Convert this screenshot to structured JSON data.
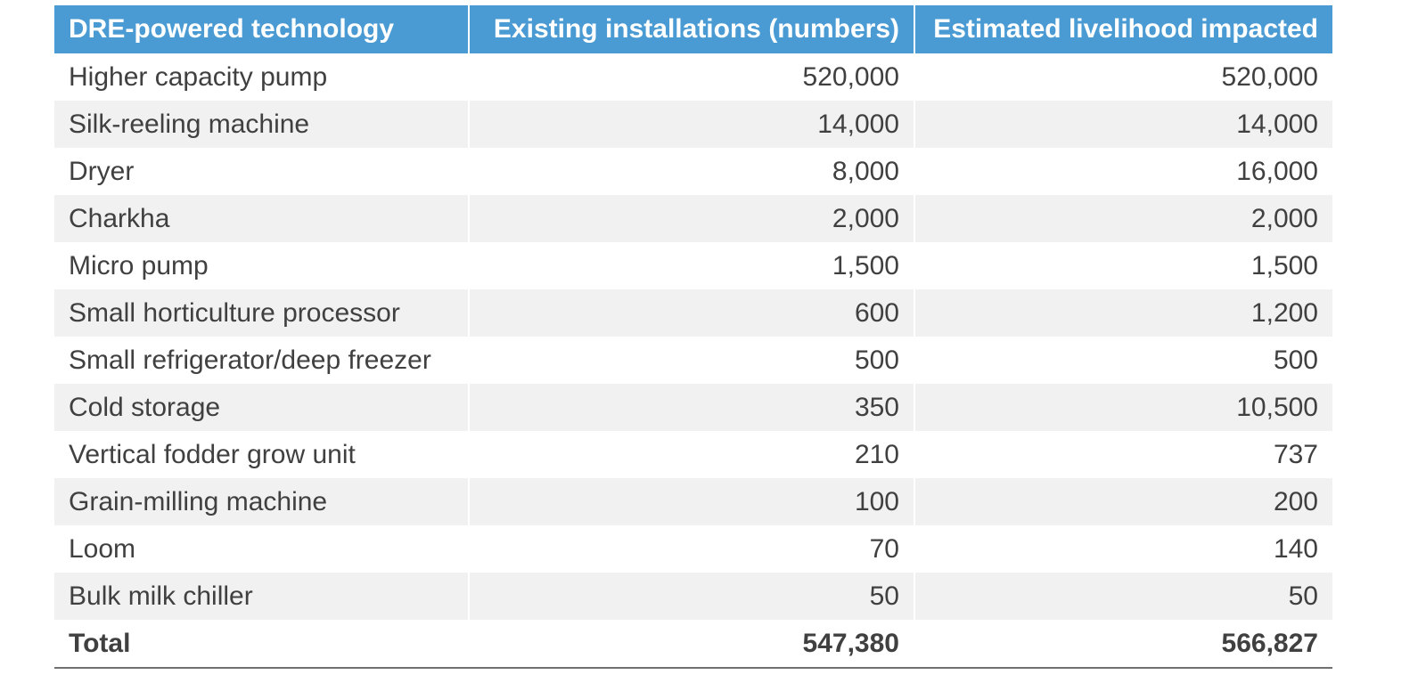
{
  "table": {
    "headers": [
      "DRE-powered technology",
      "Existing installations (numbers)",
      "Estimated livelihood impacted"
    ],
    "rows": [
      [
        "Higher capacity pump",
        "520,000",
        "520,000"
      ],
      [
        "Silk-reeling machine",
        "14,000",
        "14,000"
      ],
      [
        "Dryer",
        "8,000",
        "16,000"
      ],
      [
        "Charkha",
        "2,000",
        "2,000"
      ],
      [
        "Micro pump",
        "1,500",
        "1,500"
      ],
      [
        "Small horticulture processor",
        "600",
        "1,200"
      ],
      [
        "Small refrigerator/deep freezer",
        "500",
        "500"
      ],
      [
        "Cold storage",
        "350",
        "10,500"
      ],
      [
        "Vertical fodder grow unit",
        "210",
        "737"
      ],
      [
        "Grain-milling machine",
        "100",
        "200"
      ],
      [
        "Loom",
        "70",
        "140"
      ],
      [
        "Bulk milk chiller",
        "50",
        "50"
      ]
    ],
    "total": [
      "Total",
      "547,380",
      "566,827"
    ]
  }
}
